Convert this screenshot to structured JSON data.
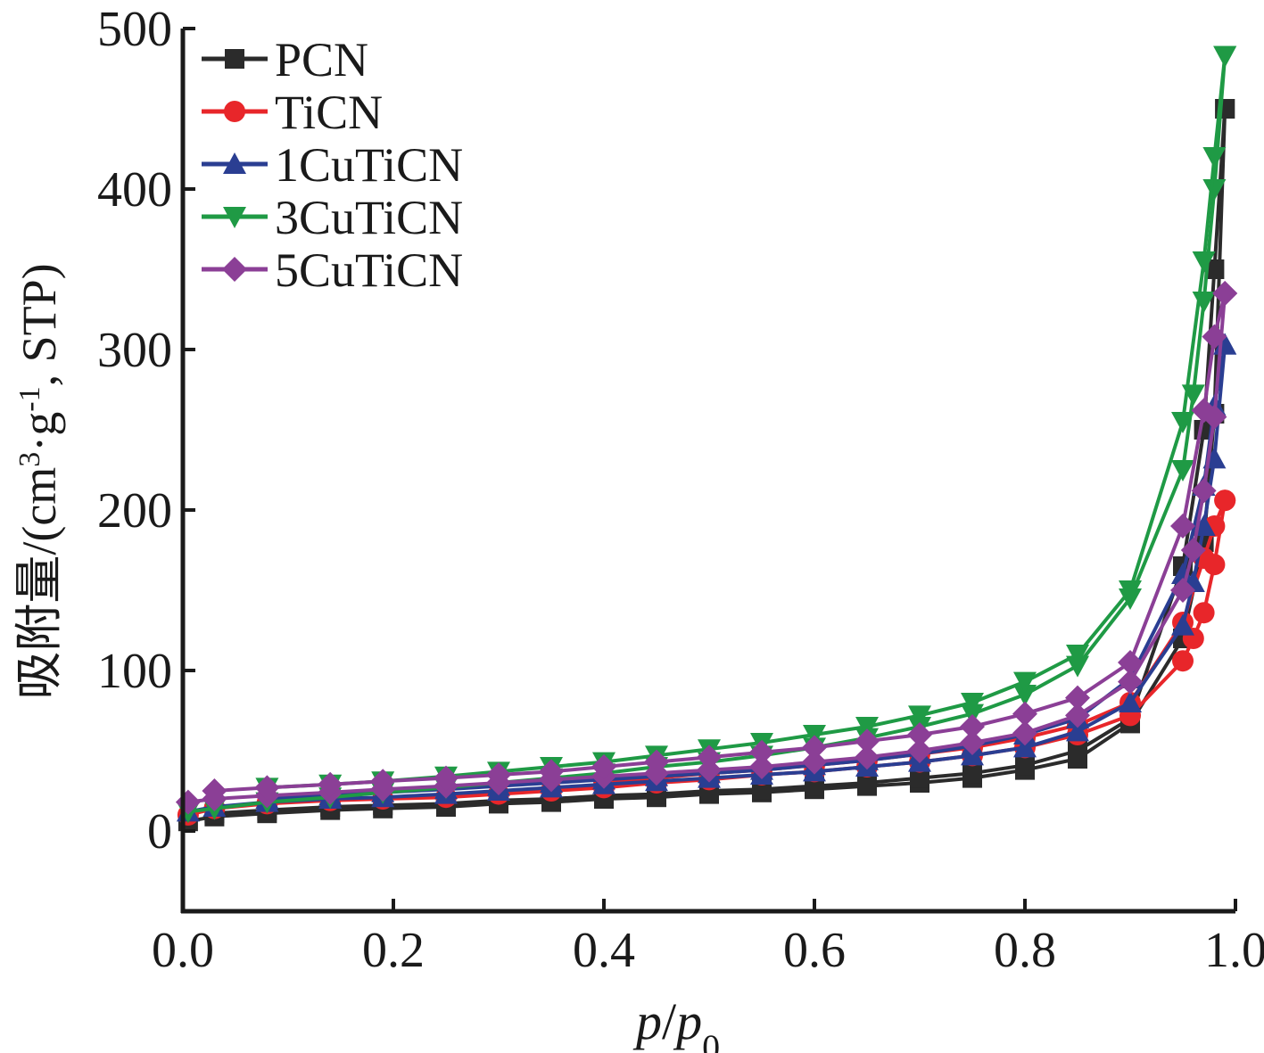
{
  "chart_data": {
    "type": "line",
    "title": "",
    "xlabel": "p/p0",
    "xlabel_main": "p",
    "xlabel_sep": "/",
    "xlabel_p": "p",
    "xlabel_sub": "0",
    "ylabel": "吸附量/(cm³·g⁻¹, STP)",
    "ylabel_main": "吸附量/(cm",
    "ylabel_sup1": "3",
    "ylabel_mid": "·g",
    "ylabel_sup2": "-1",
    "ylabel_end": ", STP)",
    "xlim": [
      0.0,
      1.0
    ],
    "ylim": [
      -50,
      500
    ],
    "xticks": [
      "0.0",
      "0.2",
      "0.4",
      "0.6",
      "0.8",
      "1.0"
    ],
    "xtick_values": [
      0.0,
      0.2,
      0.4,
      0.6,
      0.8,
      1.0
    ],
    "yticks": [
      "0",
      "100",
      "200",
      "300",
      "400",
      "500"
    ],
    "ytick_values": [
      0,
      100,
      200,
      300,
      400,
      500
    ],
    "grid": false,
    "legend_position": "top-left",
    "series": [
      {
        "name": "PCN",
        "color": "#2b2b2b",
        "marker": "square",
        "adsorption": {
          "x": [
            0.005,
            0.03,
            0.08,
            0.14,
            0.19,
            0.25,
            0.3,
            0.35,
            0.4,
            0.45,
            0.5,
            0.55,
            0.6,
            0.65,
            0.7,
            0.75,
            0.8,
            0.85,
            0.9,
            0.95,
            0.97,
            0.98,
            0.99
          ],
          "y": [
            6,
            9,
            11,
            13,
            14,
            15,
            17,
            18,
            20,
            21,
            23,
            24,
            26,
            28,
            30,
            33,
            38,
            45,
            67,
            120,
            180,
            260,
            450
          ]
        },
        "desorption": {
          "x": [
            0.99,
            0.98,
            0.97,
            0.95,
            0.9,
            0.85,
            0.8,
            0.75,
            0.7,
            0.65,
            0.6,
            0.55,
            0.5,
            0.45,
            0.4,
            0.35,
            0.3,
            0.25,
            0.19,
            0.14,
            0.08,
            0.03
          ],
          "y": [
            450,
            350,
            250,
            165,
            70,
            50,
            41,
            36,
            33,
            30,
            28,
            26,
            25,
            23,
            22,
            20,
            19,
            17,
            16,
            15,
            13,
            11
          ]
        }
      },
      {
        "name": "TiCN",
        "color": "#e8262a",
        "marker": "circle",
        "adsorption": {
          "x": [
            0.005,
            0.03,
            0.08,
            0.14,
            0.19,
            0.25,
            0.3,
            0.35,
            0.4,
            0.45,
            0.5,
            0.55,
            0.6,
            0.65,
            0.7,
            0.75,
            0.8,
            0.85,
            0.9,
            0.95,
            0.96,
            0.97,
            0.98,
            0.99
          ],
          "y": [
            10,
            14,
            17,
            19,
            20,
            21,
            23,
            25,
            27,
            30,
            32,
            35,
            37,
            40,
            43,
            47,
            52,
            60,
            72,
            106,
            120,
            136,
            166,
            206
          ]
        },
        "desorption": {
          "x": [
            0.99,
            0.98,
            0.97,
            0.95,
            0.9,
            0.85,
            0.8,
            0.75,
            0.7,
            0.65,
            0.6,
            0.55,
            0.5,
            0.45,
            0.4
          ],
          "y": [
            206,
            190,
            170,
            130,
            80,
            66,
            58,
            52,
            48,
            44,
            41,
            38,
            36,
            33,
            31
          ]
        }
      },
      {
        "name": "1CuTiCN",
        "color": "#2a3e92",
        "marker": "triangle-up",
        "adsorption": {
          "x": [
            0.005,
            0.03,
            0.08,
            0.14,
            0.19,
            0.25,
            0.3,
            0.35,
            0.4,
            0.45,
            0.5,
            0.55,
            0.6,
            0.65,
            0.7,
            0.75,
            0.8,
            0.85,
            0.9,
            0.95,
            0.96,
            0.97,
            0.98,
            0.99
          ],
          "y": [
            12,
            15,
            18,
            20,
            21,
            23,
            25,
            27,
            29,
            31,
            33,
            35,
            37,
            40,
            43,
            47,
            52,
            62,
            80,
            128,
            155,
            190,
            232,
            303
          ]
        },
        "desorption": {
          "x": [
            0.99,
            0.98,
            0.97,
            0.95,
            0.9,
            0.85,
            0.8,
            0.75,
            0.7,
            0.65,
            0.6,
            0.55,
            0.5,
            0.45,
            0.4,
            0.35,
            0.3,
            0.25,
            0.19,
            0.14,
            0.08
          ],
          "y": [
            303,
            265,
            215,
            160,
            95,
            70,
            60,
            53,
            48,
            44,
            41,
            38,
            36,
            34,
            32,
            30,
            28,
            26,
            24,
            22,
            20
          ]
        }
      },
      {
        "name": "3CuTiCN",
        "color": "#1f9a45",
        "marker": "triangle-down",
        "adsorption": {
          "x": [
            0.005,
            0.03,
            0.08,
            0.14,
            0.19,
            0.25,
            0.3,
            0.35,
            0.4,
            0.45,
            0.5,
            0.55,
            0.6,
            0.65,
            0.7,
            0.75,
            0.8,
            0.85,
            0.9,
            0.95,
            0.96,
            0.97,
            0.98,
            0.99
          ],
          "y": [
            12,
            14,
            18,
            21,
            24,
            27,
            30,
            33,
            36,
            40,
            43,
            47,
            52,
            58,
            65,
            73,
            85,
            103,
            145,
            225,
            272,
            330,
            400,
            483
          ]
        },
        "desorption": {
          "x": [
            0.99,
            0.98,
            0.97,
            0.95,
            0.9,
            0.85,
            0.8,
            0.75,
            0.7,
            0.65,
            0.6,
            0.55,
            0.5,
            0.45,
            0.4,
            0.35,
            0.3,
            0.25,
            0.19,
            0.14,
            0.08
          ],
          "y": [
            483,
            420,
            355,
            255,
            150,
            110,
            93,
            80,
            72,
            65,
            60,
            55,
            51,
            47,
            43,
            40,
            37,
            34,
            31,
            29,
            27
          ]
        }
      },
      {
        "name": "5CuTiCN",
        "color": "#8b3f96",
        "marker": "diamond",
        "adsorption": {
          "x": [
            0.005,
            0.03,
            0.08,
            0.14,
            0.19,
            0.25,
            0.3,
            0.35,
            0.4,
            0.45,
            0.5,
            0.55,
            0.6,
            0.65,
            0.7,
            0.75,
            0.8,
            0.85,
            0.9,
            0.95,
            0.96,
            0.97,
            0.98,
            0.99
          ],
          "y": [
            18,
            20,
            22,
            24,
            26,
            28,
            30,
            32,
            34,
            36,
            38,
            40,
            43,
            46,
            50,
            55,
            61,
            72,
            93,
            150,
            175,
            212,
            258,
            335
          ]
        },
        "desorption": {
          "x": [
            0.99,
            0.98,
            0.97,
            0.95,
            0.9,
            0.85,
            0.8,
            0.75,
            0.7,
            0.65,
            0.6,
            0.55,
            0.5,
            0.45,
            0.4,
            0.35,
            0.3,
            0.25,
            0.19,
            0.14,
            0.08,
            0.03
          ],
          "y": [
            335,
            308,
            262,
            190,
            105,
            83,
            73,
            65,
            60,
            56,
            52,
            49,
            46,
            43,
            40,
            37,
            35,
            33,
            31,
            29,
            27,
            25
          ]
        }
      }
    ]
  }
}
